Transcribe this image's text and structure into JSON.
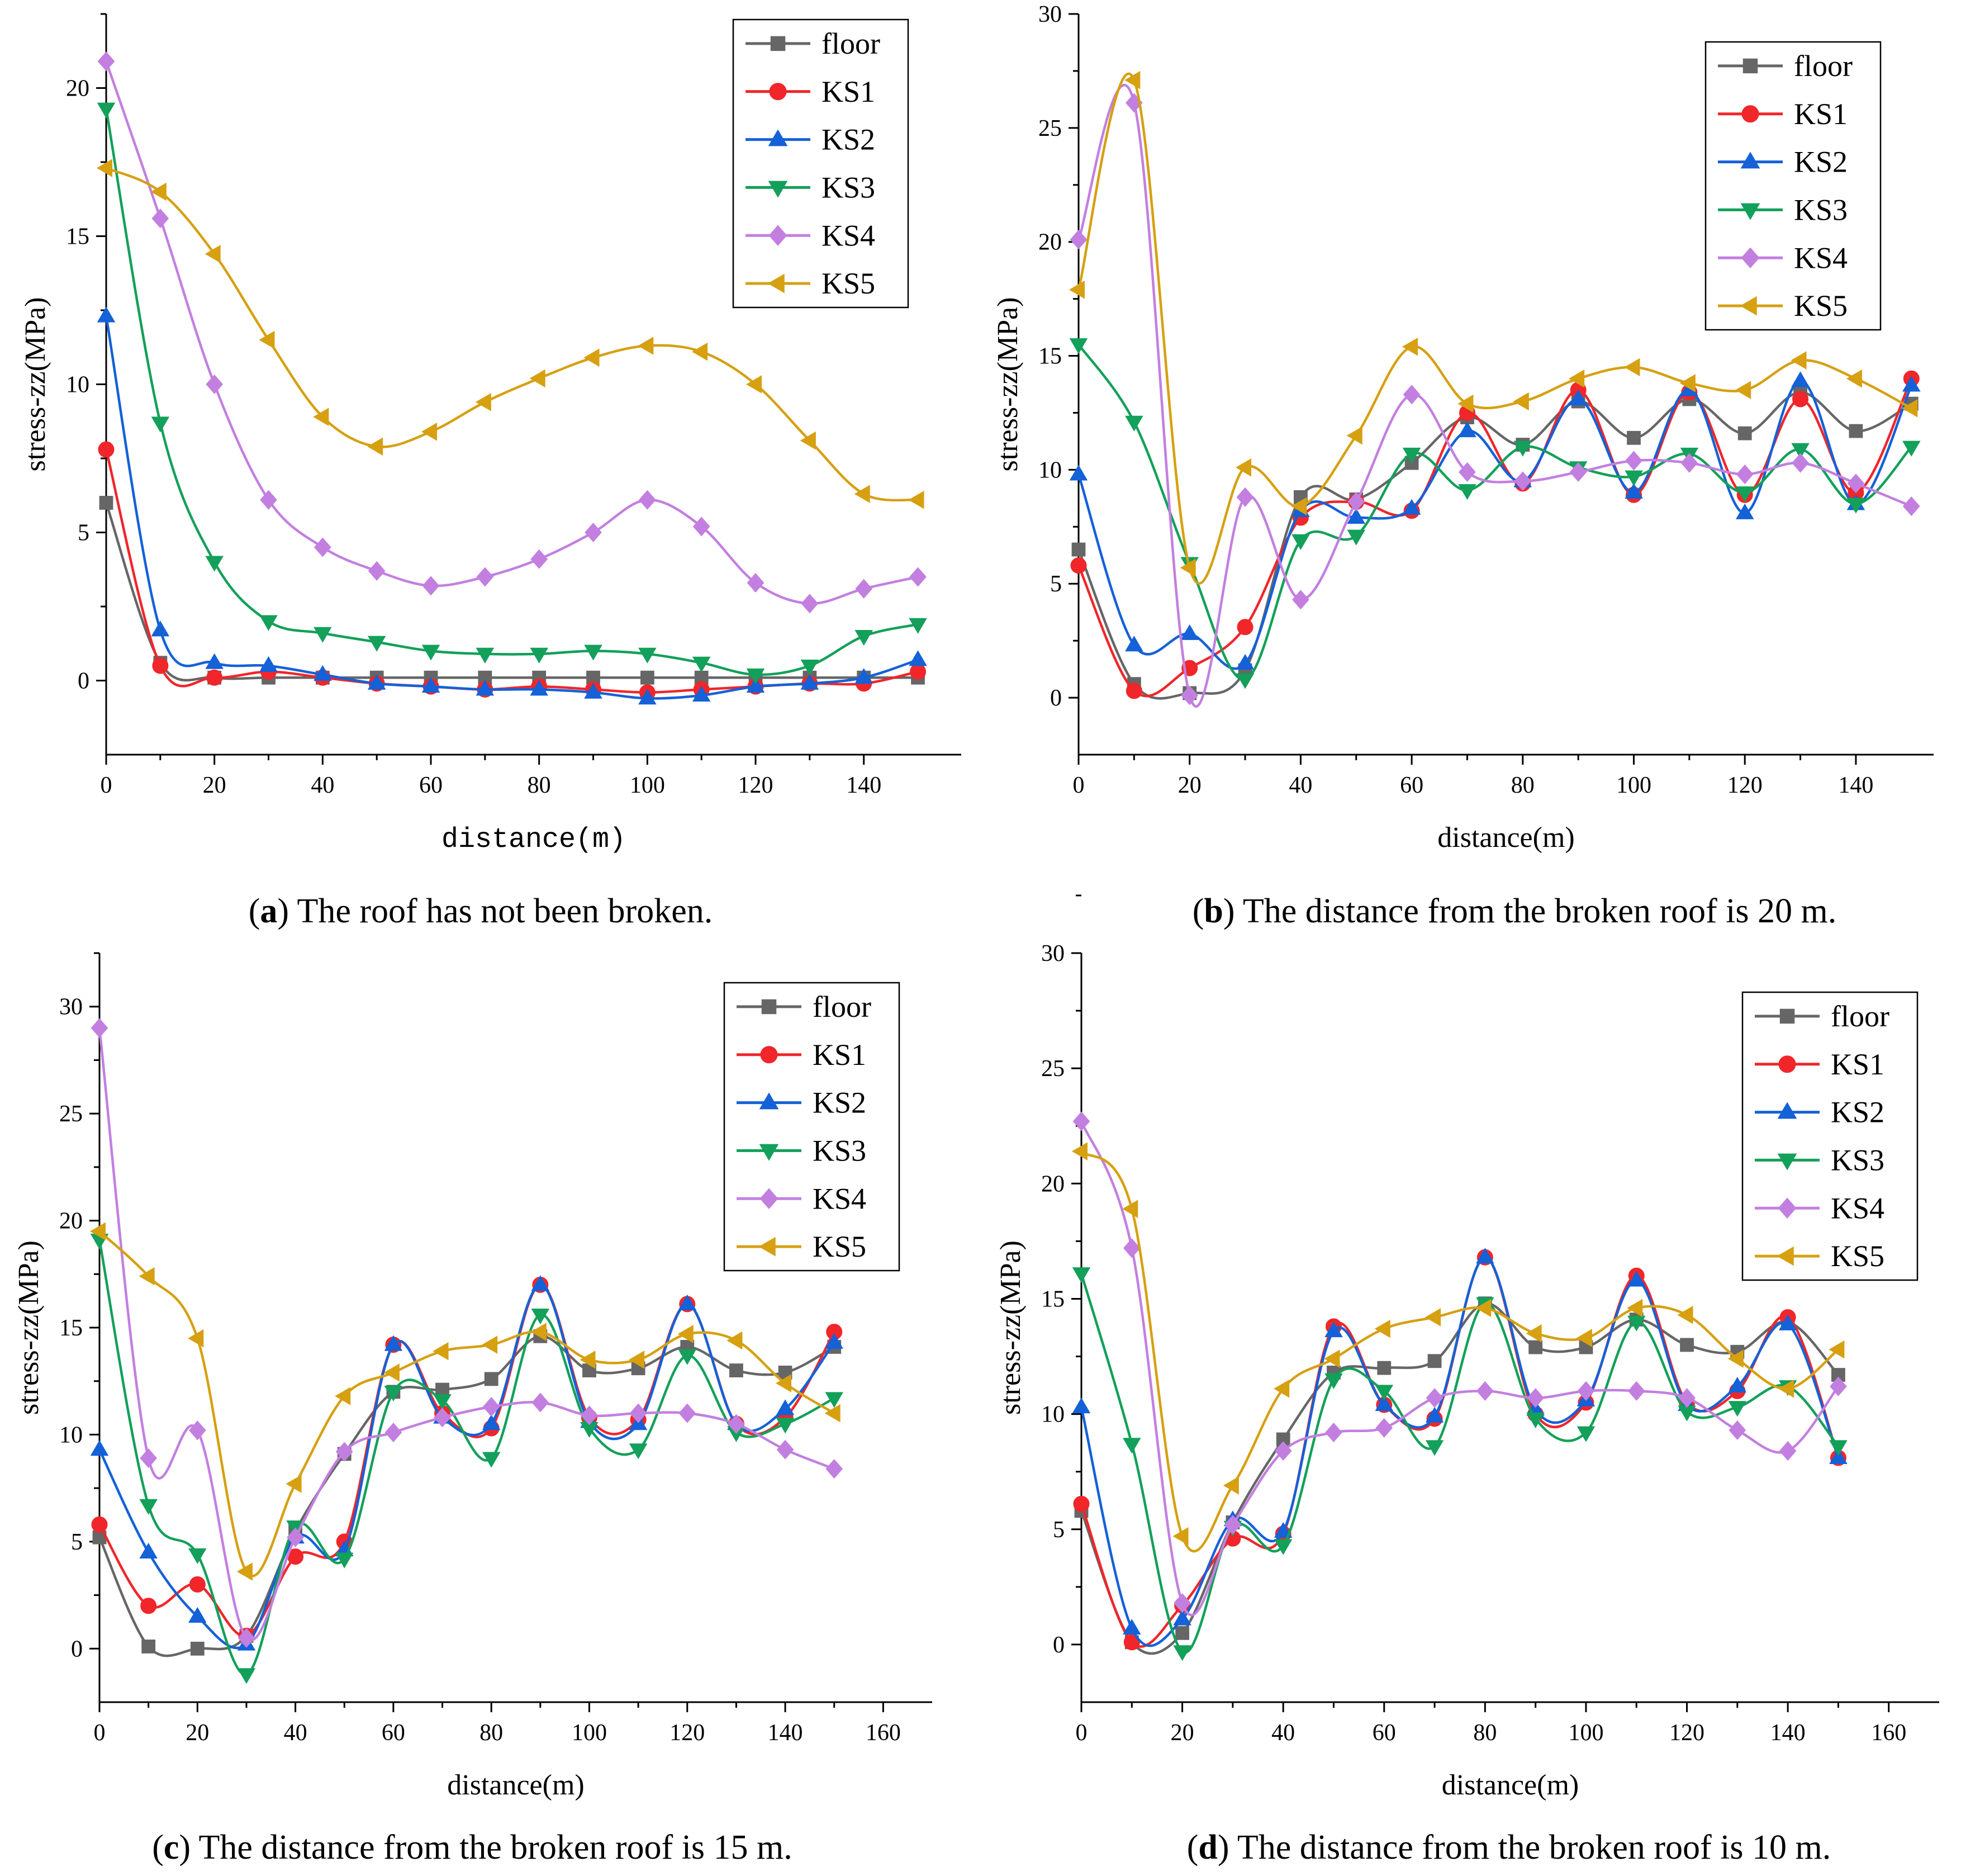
{
  "chart_data": [
    {
      "id": "a",
      "type": "line",
      "caption_letter": "a",
      "caption_text": " The roof has not been broken.",
      "xlabel": "distance(m)",
      "ylabel": "stress-zz(MPa)",
      "xlim": [
        0,
        158
      ],
      "ylim": [
        -2.5,
        22.5
      ],
      "xticks": [
        0,
        20,
        40,
        60,
        80,
        100,
        120,
        140
      ],
      "yticks": [
        0,
        5,
        10,
        15,
        20
      ],
      "series": [
        {
          "name": "floor",
          "x": [
            0,
            10,
            20,
            30,
            40,
            50,
            60,
            70,
            80,
            90,
            100,
            110,
            120,
            130,
            140,
            150
          ],
          "values": [
            6,
            0.6,
            0.1,
            0.1,
            0.1,
            0.1,
            0.1,
            0.1,
            0.1,
            0.1,
            0.1,
            0.1,
            0.1,
            0.1,
            0.1,
            0.1
          ]
        },
        {
          "name": "KS1",
          "x": [
            0,
            10,
            20,
            30,
            40,
            50,
            60,
            70,
            80,
            90,
            100,
            110,
            120,
            130,
            140,
            150
          ],
          "values": [
            7.8,
            0.5,
            0.1,
            0.3,
            0.1,
            -0.1,
            -0.2,
            -0.3,
            -0.2,
            -0.3,
            -0.4,
            -0.3,
            -0.2,
            -0.1,
            -0.1,
            0.3
          ]
        },
        {
          "name": "KS2",
          "x": [
            0,
            10,
            20,
            30,
            40,
            50,
            60,
            70,
            80,
            90,
            100,
            110,
            120,
            130,
            140,
            150
          ],
          "values": [
            12.3,
            1.7,
            0.6,
            0.5,
            0.2,
            -0.1,
            -0.2,
            -0.3,
            -0.3,
            -0.4,
            -0.6,
            -0.5,
            -0.2,
            -0.1,
            0.1,
            0.7
          ]
        },
        {
          "name": "KS3",
          "x": [
            0,
            10,
            20,
            30,
            40,
            50,
            60,
            70,
            80,
            90,
            100,
            110,
            120,
            130,
            140,
            150
          ],
          "values": [
            19.3,
            8.7,
            4,
            2,
            1.6,
            1.3,
            1,
            0.9,
            0.9,
            1,
            0.9,
            0.6,
            0.2,
            0.5,
            1.5,
            1.9
          ]
        },
        {
          "name": "KS4",
          "x": [
            0,
            10,
            20,
            30,
            40,
            50,
            60,
            70,
            80,
            90,
            100,
            110,
            120,
            130,
            140,
            150
          ],
          "values": [
            20.9,
            15.6,
            10,
            6.1,
            4.5,
            3.7,
            3.2,
            3.5,
            4.1,
            5,
            6.1,
            5.2,
            3.3,
            2.6,
            3.1,
            3.5
          ]
        },
        {
          "name": "KS5",
          "x": [
            0,
            10,
            20,
            30,
            40,
            50,
            60,
            70,
            80,
            90,
            100,
            110,
            120,
            130,
            140,
            150
          ],
          "values": [
            17.3,
            16.5,
            14.4,
            11.5,
            8.9,
            7.9,
            8.4,
            9.4,
            10.2,
            10.9,
            11.3,
            11.1,
            10,
            8.1,
            6.3,
            6.1
          ]
        }
      ]
    },
    {
      "id": "b",
      "type": "line",
      "caption_letter": "b",
      "caption_text": " The distance from the broken roof is 20 m.",
      "xlabel": "distance(m)",
      "ylabel": "stress-zz(MPa)",
      "xlim": [
        0,
        154
      ],
      "ylim": [
        -2.5,
        30
      ],
      "xticks": [
        0,
        20,
        40,
        60,
        80,
        100,
        120,
        140
      ],
      "yticks": [
        0,
        5,
        10,
        15,
        20,
        25,
        30
      ],
      "series": [
        {
          "name": "floor",
          "x": [
            0,
            10,
            20,
            30,
            40,
            50,
            60,
            70,
            80,
            90,
            100,
            110,
            120,
            130,
            140,
            150
          ],
          "values": [
            6.5,
            0.6,
            0.2,
            1.2,
            8.8,
            8.7,
            10.3,
            12.3,
            11.1,
            13,
            11.4,
            13.1,
            11.6,
            13.4,
            11.7,
            12.9
          ]
        },
        {
          "name": "KS1",
          "x": [
            0,
            10,
            20,
            30,
            40,
            50,
            60,
            70,
            80,
            90,
            100,
            110,
            120,
            130,
            140,
            150
          ],
          "values": [
            5.8,
            0.3,
            1.3,
            3.1,
            7.9,
            8.6,
            8.2,
            12.5,
            9.4,
            13.5,
            8.9,
            13.4,
            8.9,
            13.1,
            9,
            14
          ]
        },
        {
          "name": "KS2",
          "x": [
            0,
            10,
            20,
            30,
            40,
            50,
            60,
            70,
            80,
            90,
            100,
            110,
            120,
            130,
            140,
            150
          ],
          "values": [
            9.8,
            2.3,
            2.8,
            1.5,
            8.2,
            7.9,
            8.3,
            11.7,
            9.5,
            13.1,
            9,
            13.5,
            8.1,
            13.9,
            8.5,
            13.7
          ]
        },
        {
          "name": "KS3",
          "x": [
            0,
            10,
            20,
            30,
            40,
            50,
            60,
            70,
            80,
            90,
            100,
            110,
            120,
            130,
            140,
            150
          ],
          "values": [
            15.5,
            12.1,
            5.9,
            0.8,
            6.9,
            7.1,
            10.7,
            9.1,
            11,
            10.1,
            9.7,
            10.7,
            9,
            10.9,
            8.5,
            11
          ]
        },
        {
          "name": "KS4",
          "x": [
            0,
            10,
            20,
            30,
            40,
            50,
            60,
            70,
            80,
            90,
            100,
            110,
            120,
            130,
            140,
            150
          ],
          "values": [
            20.1,
            26.1,
            0.1,
            8.8,
            4.3,
            8.6,
            13.3,
            9.9,
            9.5,
            9.9,
            10.4,
            10.3,
            9.8,
            10.3,
            9.4,
            8.4
          ]
        },
        {
          "name": "KS5",
          "x": [
            0,
            10,
            20,
            30,
            40,
            50,
            60,
            70,
            80,
            90,
            100,
            110,
            120,
            130,
            140,
            150
          ],
          "values": [
            17.9,
            27.1,
            5.7,
            10.1,
            8.4,
            11.5,
            15.4,
            12.9,
            13,
            14,
            14.5,
            13.8,
            13.5,
            14.8,
            14,
            12.7
          ]
        }
      ]
    },
    {
      "id": "c",
      "type": "line",
      "caption_letter": "c",
      "caption_text": " The distance from the broken roof is 15 m.",
      "xlabel": "distance(m)",
      "ylabel": "stress-zz(MPa)",
      "xlim": [
        0,
        170
      ],
      "ylim": [
        -2.5,
        32.5
      ],
      "xticks": [
        0,
        20,
        40,
        60,
        80,
        100,
        120,
        140,
        160
      ],
      "yticks": [
        0,
        5,
        10,
        15,
        20,
        25,
        30
      ],
      "series": [
        {
          "name": "floor",
          "x": [
            0,
            10,
            20,
            30,
            40,
            50,
            60,
            70,
            80,
            90,
            100,
            110,
            120,
            130,
            140,
            150
          ],
          "values": [
            5.2,
            0.1,
            0,
            0.6,
            5.5,
            9.1,
            12,
            12.1,
            12.6,
            14.6,
            13,
            13.1,
            14.1,
            13,
            12.9,
            14.1
          ]
        },
        {
          "name": "KS1",
          "x": [
            0,
            10,
            20,
            30,
            40,
            50,
            60,
            70,
            80,
            90,
            100,
            110,
            120,
            130,
            140,
            150
          ],
          "values": [
            5.8,
            2,
            3,
            0.6,
            4.3,
            5,
            14.2,
            11,
            10.3,
            17,
            10.8,
            10.7,
            16.1,
            10.5,
            10.8,
            14.8
          ]
        },
        {
          "name": "KS2",
          "x": [
            0,
            10,
            20,
            30,
            40,
            50,
            60,
            70,
            80,
            90,
            100,
            110,
            120,
            130,
            140,
            150
          ],
          "values": [
            9.3,
            4.5,
            1.5,
            0.2,
            5.2,
            4.6,
            14.2,
            10.8,
            10.5,
            17,
            10.6,
            10.5,
            16.1,
            10.5,
            11.2,
            14.3
          ]
        },
        {
          "name": "KS3",
          "x": [
            0,
            10,
            20,
            30,
            40,
            50,
            60,
            70,
            80,
            90,
            100,
            110,
            120,
            130,
            140,
            150
          ],
          "values": [
            19.1,
            6.7,
            4.4,
            -1.2,
            5.7,
            4.2,
            12,
            11.6,
            8.9,
            15.6,
            10.3,
            9.3,
            13.7,
            10.1,
            10.5,
            11.7
          ]
        },
        {
          "name": "KS4",
          "x": [
            0,
            10,
            20,
            30,
            40,
            50,
            60,
            70,
            80,
            90,
            100,
            110,
            120,
            130,
            140,
            150
          ],
          "values": [
            29,
            8.9,
            10.2,
            0.5,
            5.2,
            9.2,
            10.1,
            10.8,
            11.3,
            11.5,
            10.9,
            11,
            11,
            10.5,
            9.3,
            8.4
          ]
        },
        {
          "name": "KS5",
          "x": [
            0,
            10,
            20,
            30,
            40,
            50,
            60,
            70,
            80,
            90,
            100,
            110,
            120,
            130,
            140,
            150
          ],
          "values": [
            19.5,
            17.4,
            14.5,
            3.6,
            7.7,
            11.8,
            12.9,
            13.9,
            14.2,
            14.8,
            13.5,
            13.5,
            14.7,
            14.4,
            12.4,
            11
          ]
        }
      ]
    },
    {
      "id": "d",
      "type": "line",
      "caption_letter": "d",
      "caption_text": " The distance from the broken roof is 10 m.",
      "xlabel": "distance(m)",
      "ylabel": "stress-zz(MPa)",
      "xlim": [
        0,
        170
      ],
      "ylim": [
        -2.5,
        30
      ],
      "xticks": [
        0,
        20,
        40,
        60,
        80,
        100,
        120,
        140,
        160
      ],
      "yticks": [
        0,
        5,
        10,
        15,
        20,
        25,
        30
      ],
      "series": [
        {
          "name": "floor",
          "x": [
            0,
            10,
            20,
            30,
            40,
            50,
            60,
            70,
            80,
            90,
            100,
            110,
            120,
            130,
            140,
            150
          ],
          "values": [
            5.8,
            0.1,
            0.5,
            5.3,
            8.9,
            11.8,
            12,
            12.3,
            14.8,
            12.9,
            12.9,
            14.1,
            13,
            12.7,
            14,
            11.7
          ]
        },
        {
          "name": "KS1",
          "x": [
            0,
            10,
            20,
            30,
            40,
            50,
            60,
            70,
            80,
            90,
            100,
            110,
            120,
            130,
            140,
            150
          ],
          "values": [
            6.1,
            0.1,
            1.7,
            4.6,
            4.8,
            13.8,
            10.4,
            9.8,
            16.8,
            10,
            10.5,
            16,
            10.5,
            11,
            14.2,
            8.1
          ]
        },
        {
          "name": "KS2",
          "x": [
            0,
            10,
            20,
            30,
            40,
            50,
            60,
            70,
            80,
            90,
            100,
            110,
            120,
            130,
            140,
            150
          ],
          "values": [
            10.3,
            0.7,
            1.1,
            5.4,
            4.9,
            13.6,
            10.4,
            9.9,
            16.8,
            10.2,
            10.6,
            15.8,
            10.4,
            11.2,
            13.9,
            8.1
          ]
        },
        {
          "name": "KS3",
          "x": [
            0,
            10,
            20,
            30,
            40,
            50,
            60,
            70,
            80,
            90,
            100,
            110,
            120,
            130,
            140,
            150
          ],
          "values": [
            16.1,
            8.7,
            -0.3,
            5.1,
            4.3,
            11.5,
            11,
            8.6,
            14.8,
            9.8,
            9.2,
            14,
            10.1,
            10.3,
            11.2,
            8.6
          ]
        },
        {
          "name": "KS4",
          "x": [
            0,
            10,
            20,
            30,
            40,
            50,
            60,
            70,
            80,
            90,
            100,
            110,
            120,
            130,
            140,
            150
          ],
          "values": [
            22.7,
            17.2,
            1.8,
            5.2,
            8.4,
            9.2,
            9.4,
            10.7,
            11,
            10.7,
            11,
            11,
            10.7,
            9.3,
            8.4,
            11.2
          ]
        },
        {
          "name": "KS5",
          "x": [
            0,
            10,
            20,
            30,
            40,
            50,
            60,
            70,
            80,
            90,
            100,
            110,
            120,
            130,
            140,
            150
          ],
          "values": [
            21.4,
            18.9,
            4.7,
            6.9,
            11.1,
            12.4,
            13.7,
            14.2,
            14.6,
            13.5,
            13.3,
            14.6,
            14.3,
            12.4,
            11.1,
            12.8
          ]
        }
      ]
    }
  ],
  "legend": {
    "entries": [
      "floor",
      "KS1",
      "KS2",
      "KS3",
      "KS4",
      "KS5"
    ],
    "placement": "top-right"
  },
  "colors": {
    "floor": "#666666",
    "KS1": "#f0262a",
    "KS2": "#1461d8",
    "KS3": "#13a05a",
    "KS4": "#c37fe0",
    "KS5": "#d6a011"
  },
  "markers": {
    "floor": "square",
    "KS1": "circle",
    "KS2": "triangle-up",
    "KS3": "triangle-down",
    "KS4": "diamond",
    "KS5": "triangle-left"
  }
}
